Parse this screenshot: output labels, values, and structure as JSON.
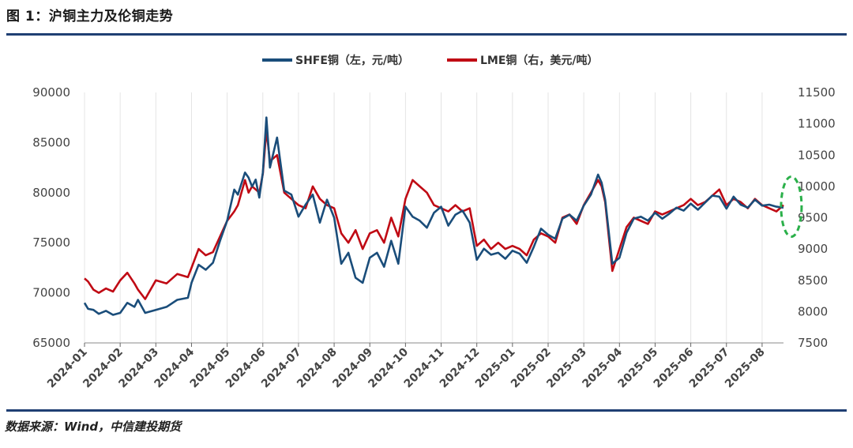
{
  "figure": {
    "title": "图 1：沪铜主力及伦铜走势",
    "source": "数据来源：Wind，中信建投期货"
  },
  "colors": {
    "shfe": "#1a4d7a",
    "lme": "#c00a14",
    "highlight": "#2bb04a",
    "rule": "#1f3f73",
    "grid": "#e4e4e4"
  },
  "chart_data": {
    "type": "line",
    "title": "",
    "xlabel": "",
    "ylabel_left": "",
    "ylabel_right": "",
    "grid": "vertical",
    "legend_position": "top-center",
    "x_categories": [
      "2024-01",
      "2024-02",
      "2024-03",
      "2024-04",
      "2024-05",
      "2024-06",
      "2024-07",
      "2024-08",
      "2024-09",
      "2024-10",
      "2024-11",
      "2024-12",
      "2025-01",
      "2025-02",
      "2025-03",
      "2025-04",
      "2025-05",
      "2025-06",
      "2025-07",
      "2025-08"
    ],
    "x_range": [
      0,
      19.6
    ],
    "y_left": {
      "range": [
        65000,
        90000
      ],
      "ticks": [
        65000,
        70000,
        75000,
        80000,
        85000,
        90000
      ]
    },
    "y_right": {
      "range": [
        7500,
        11500
      ],
      "ticks": [
        7500,
        8000,
        8500,
        9000,
        9500,
        10000,
        10500,
        11000,
        11500
      ]
    },
    "annotation": "dashed ellipse highlighting latest values (Aug 2025)",
    "series": [
      {
        "name": "SHFE铜（左，元/吨）",
        "axis": "left",
        "x": [
          0,
          0.1,
          0.25,
          0.4,
          0.6,
          0.8,
          1.0,
          1.2,
          1.4,
          1.5,
          1.7,
          2.0,
          2.3,
          2.6,
          2.9,
          3.0,
          3.2,
          3.4,
          3.6,
          3.8,
          4.0,
          4.2,
          4.3,
          4.5,
          4.6,
          4.7,
          4.8,
          4.9,
          5.0,
          5.1,
          5.2,
          5.4,
          5.6,
          5.8,
          6.0,
          6.2,
          6.4,
          6.6,
          6.8,
          7.0,
          7.2,
          7.4,
          7.6,
          7.8,
          8.0,
          8.2,
          8.4,
          8.6,
          8.8,
          9.0,
          9.2,
          9.4,
          9.6,
          9.8,
          10.0,
          10.2,
          10.4,
          10.6,
          10.8,
          11.0,
          11.2,
          11.4,
          11.6,
          11.8,
          12.0,
          12.2,
          12.4,
          12.6,
          12.8,
          13.0,
          13.2,
          13.4,
          13.6,
          13.8,
          14.0,
          14.2,
          14.4,
          14.5,
          14.6,
          14.8,
          15.0,
          15.2,
          15.4,
          15.6,
          15.8,
          16.0,
          16.2,
          16.4,
          16.6,
          16.8,
          17.0,
          17.2,
          17.4,
          17.6,
          17.8,
          18.0,
          18.2,
          18.4,
          18.6,
          18.8,
          19.0,
          19.2,
          19.4,
          19.6
        ],
        "values": [
          69000,
          68400,
          68300,
          67900,
          68200,
          67800,
          68000,
          69000,
          68600,
          69300,
          68000,
          68300,
          68600,
          69300,
          69500,
          71000,
          72800,
          72300,
          73000,
          75200,
          77200,
          80300,
          79800,
          82000,
          81500,
          80600,
          81300,
          79500,
          82000,
          87500,
          82500,
          85500,
          80200,
          79800,
          77600,
          78800,
          79800,
          77000,
          79300,
          77500,
          72900,
          74000,
          71500,
          71000,
          73500,
          74000,
          72600,
          75200,
          72900,
          78600,
          77600,
          77200,
          76500,
          78000,
          78600,
          76700,
          77800,
          78200,
          77000,
          73300,
          74400,
          73800,
          74000,
          73400,
          74200,
          73900,
          73000,
          74600,
          76400,
          75800,
          75400,
          77400,
          77800,
          77200,
          78700,
          79800,
          81800,
          81000,
          79300,
          72900,
          73500,
          76000,
          77400,
          77600,
          77200,
          78000,
          77400,
          77900,
          78500,
          78200,
          78900,
          78300,
          79000,
          79700,
          79600,
          78400,
          79600,
          78800,
          78500,
          79300,
          78700,
          78800,
          78600,
          78500
        ]
      },
      {
        "name": "LME铜（右，美元/吨）",
        "axis": "right",
        "x": [
          0,
          0.1,
          0.25,
          0.4,
          0.6,
          0.8,
          1.0,
          1.2,
          1.4,
          1.5,
          1.7,
          2.0,
          2.3,
          2.6,
          2.9,
          3.0,
          3.2,
          3.4,
          3.6,
          3.8,
          4.0,
          4.2,
          4.3,
          4.5,
          4.6,
          4.7,
          4.8,
          4.9,
          5.0,
          5.1,
          5.2,
          5.4,
          5.6,
          5.8,
          6.0,
          6.2,
          6.4,
          6.6,
          6.8,
          7.0,
          7.2,
          7.4,
          7.6,
          7.8,
          8.0,
          8.2,
          8.4,
          8.6,
          8.8,
          9.0,
          9.2,
          9.4,
          9.6,
          9.8,
          10.0,
          10.2,
          10.4,
          10.6,
          10.8,
          11.0,
          11.2,
          11.4,
          11.6,
          11.8,
          12.0,
          12.2,
          12.4,
          12.6,
          12.8,
          13.0,
          13.2,
          13.4,
          13.6,
          13.8,
          14.0,
          14.2,
          14.4,
          14.5,
          14.6,
          14.8,
          15.0,
          15.2,
          15.4,
          15.6,
          15.8,
          16.0,
          16.2,
          16.4,
          16.6,
          16.8,
          17.0,
          17.2,
          17.4,
          17.6,
          17.8,
          18.0,
          18.2,
          18.4,
          18.6,
          18.8,
          19.0,
          19.2,
          19.4,
          19.6
        ],
        "values": [
          8530,
          8480,
          8350,
          8300,
          8370,
          8320,
          8500,
          8620,
          8450,
          8350,
          8200,
          8500,
          8450,
          8600,
          8550,
          8700,
          9000,
          8900,
          8950,
          9200,
          9450,
          9600,
          9700,
          10100,
          9900,
          10000,
          9950,
          9900,
          10200,
          10900,
          10400,
          10500,
          9900,
          9800,
          9700,
          9650,
          10000,
          9800,
          9700,
          9650,
          9250,
          9100,
          9300,
          9000,
          9250,
          9300,
          9100,
          9500,
          9200,
          9800,
          10100,
          10000,
          9900,
          9700,
          9650,
          9600,
          9700,
          9600,
          9650,
          9050,
          9150,
          9000,
          9100,
          9000,
          9050,
          9000,
          8900,
          9150,
          9250,
          9200,
          9100,
          9500,
          9550,
          9400,
          9700,
          9900,
          10100,
          10000,
          9750,
          8650,
          9000,
          9350,
          9500,
          9450,
          9400,
          9600,
          9550,
          9600,
          9650,
          9700,
          9800,
          9700,
          9750,
          9850,
          9950,
          9700,
          9800,
          9750,
          9650,
          9800,
          9700,
          9650,
          9600,
          9700
        ]
      }
    ]
  }
}
